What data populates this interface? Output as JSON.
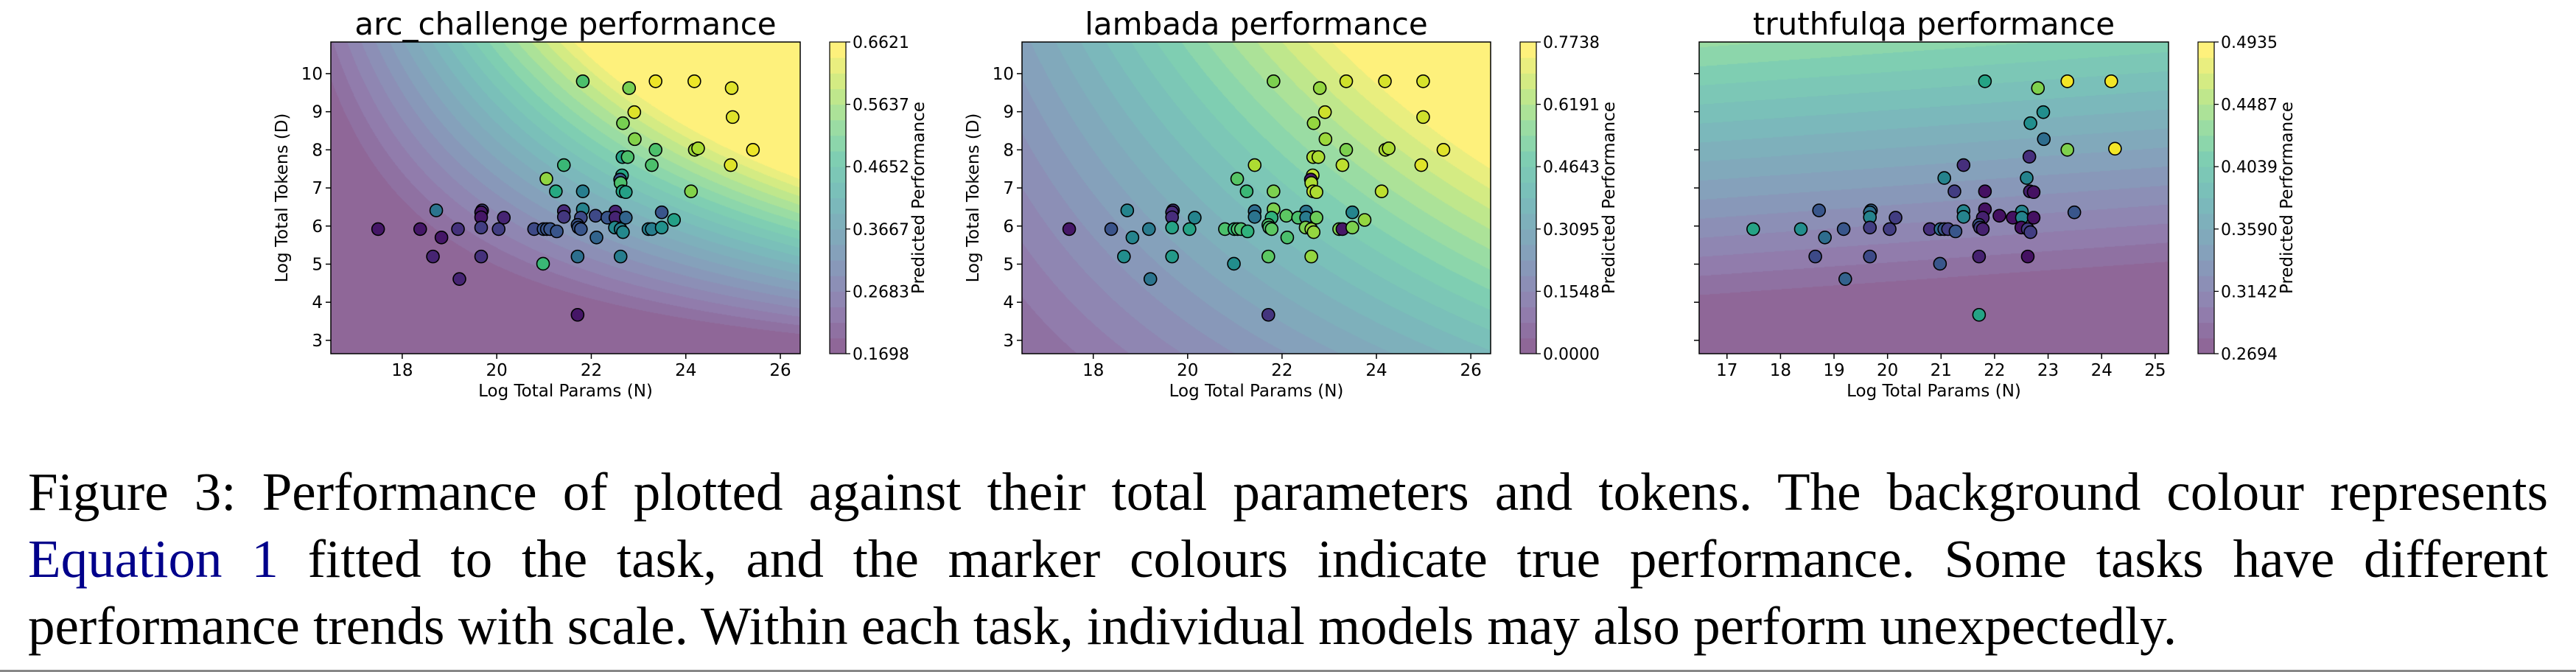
{
  "caption": {
    "line1": "Figure 3: Performance of plotted against their total parameters and tokens. The background colour represents",
    "line2_link": "Equation 1",
    "line2_rest": " fitted to the task, and the marker colours indicate true performance. Some tasks have different",
    "line3": "performance trends with scale. Within each task, individual models may also perform unexpectedly."
  },
  "chart_data": [
    {
      "type": "scatter",
      "title": "arc_challenge performance",
      "xlabel": "Log Total Params (N)",
      "ylabel": "Log Total Tokens (D)",
      "colorbar_label": "Predicted Performance",
      "colorbar_range": [
        0.1698,
        0.6621
      ],
      "colorbar_ticks": [
        "0.1698",
        "0.2683",
        "0.3667",
        "0.4652",
        "0.5637",
        "0.6621"
      ],
      "xlim": [
        16.49,
        26.42
      ],
      "ylim": [
        2.65,
        10.83
      ],
      "xticks": [
        18,
        20,
        22,
        24,
        26
      ],
      "yticks": [
        3,
        4,
        5,
        6,
        7,
        8,
        9,
        10
      ],
      "colormap": "viridis",
      "grid": false,
      "points": [
        [
          21.82,
          9.8,
          0.52
        ],
        [
          23.36,
          9.8,
          0.65
        ],
        [
          24.18,
          9.8,
          0.65
        ],
        [
          24.97,
          9.62,
          0.64
        ],
        [
          22.8,
          9.62,
          0.56
        ],
        [
          22.91,
          8.99,
          0.64
        ],
        [
          24.99,
          8.86,
          0.64
        ],
        [
          22.67,
          8.7,
          0.56
        ],
        [
          22.92,
          8.28,
          0.57
        ],
        [
          23.36,
          8.0,
          0.52
        ],
        [
          24.19,
          8.0,
          0.59
        ],
        [
          24.26,
          8.04,
          0.6
        ],
        [
          25.42,
          8.0,
          0.65
        ],
        [
          22.66,
          7.81,
          0.45
        ],
        [
          22.77,
          7.81,
          0.52
        ],
        [
          21.42,
          7.6,
          0.5
        ],
        [
          23.28,
          7.6,
          0.52
        ],
        [
          24.95,
          7.6,
          0.64
        ],
        [
          21.05,
          7.24,
          0.58
        ],
        [
          22.65,
          7.33,
          0.46
        ],
        [
          22.61,
          7.22,
          0.3
        ],
        [
          22.62,
          7.13,
          0.52
        ],
        [
          21.25,
          6.91,
          0.47
        ],
        [
          21.82,
          6.91,
          0.38
        ],
        [
          22.66,
          6.91,
          0.46
        ],
        [
          22.73,
          6.89,
          0.45
        ],
        [
          24.11,
          6.91,
          0.57
        ],
        [
          18.72,
          6.41,
          0.36
        ],
        [
          19.69,
          6.41,
          0.26
        ],
        [
          19.67,
          6.36,
          0.2
        ],
        [
          21.42,
          6.39,
          0.23
        ],
        [
          21.42,
          6.24,
          0.25
        ],
        [
          21.82,
          6.44,
          0.39
        ],
        [
          22.51,
          6.38,
          0.22
        ],
        [
          23.49,
          6.36,
          0.3
        ],
        [
          19.67,
          6.23,
          0.2
        ],
        [
          20.15,
          6.22,
          0.22
        ],
        [
          22.09,
          6.27,
          0.28
        ],
        [
          21.78,
          6.22,
          0.28
        ],
        [
          22.34,
          6.22,
          0.3
        ],
        [
          22.51,
          6.22,
          0.22
        ],
        [
          22.73,
          6.22,
          0.33
        ],
        [
          23.75,
          6.16,
          0.45
        ],
        [
          17.49,
          5.92,
          0.2
        ],
        [
          18.38,
          5.92,
          0.2
        ],
        [
          19.18,
          5.92,
          0.24
        ],
        [
          19.67,
          5.96,
          0.26
        ],
        [
          20.04,
          5.92,
          0.26
        ],
        [
          20.79,
          5.92,
          0.28
        ],
        [
          20.99,
          5.92,
          0.3
        ],
        [
          21.06,
          5.92,
          0.3
        ],
        [
          21.13,
          5.92,
          0.3
        ],
        [
          21.27,
          5.86,
          0.3
        ],
        [
          21.71,
          6.03,
          0.3
        ],
        [
          21.73,
          5.96,
          0.3
        ],
        [
          21.78,
          5.92,
          0.3
        ],
        [
          22.5,
          5.96,
          0.4
        ],
        [
          22.62,
          5.92,
          0.38
        ],
        [
          22.67,
          5.84,
          0.4
        ],
        [
          23.21,
          5.92,
          0.38
        ],
        [
          23.28,
          5.92,
          0.38
        ],
        [
          23.49,
          5.96,
          0.42
        ],
        [
          18.83,
          5.7,
          0.2
        ],
        [
          22.11,
          5.7,
          0.33
        ],
        [
          18.65,
          5.2,
          0.22
        ],
        [
          19.67,
          5.2,
          0.24
        ],
        [
          21.71,
          5.2,
          0.35
        ],
        [
          22.62,
          5.2,
          0.38
        ],
        [
          20.98,
          5.01,
          0.5
        ],
        [
          19.21,
          4.61,
          0.22
        ],
        [
          21.71,
          3.67,
          0.2
        ]
      ]
    },
    {
      "type": "scatter",
      "title": "lambada performance",
      "xlabel": "Log Total Params (N)",
      "ylabel": "Log Total Tokens (D)",
      "colorbar_label": "Predicted Performance",
      "colorbar_range": [
        0.0,
        0.7738
      ],
      "colorbar_ticks": [
        "0.0000",
        "0.1548",
        "0.3095",
        "0.4643",
        "0.6191",
        "0.7738"
      ],
      "xlim": [
        16.49,
        26.42
      ],
      "ylim": [
        2.65,
        10.83
      ],
      "xticks": [
        18,
        20,
        22,
        24,
        26
      ],
      "yticks": [
        3,
        4,
        5,
        6,
        7,
        8,
        9,
        10
      ],
      "colormap": "viridis",
      "grid": false,
      "points": [
        [
          21.82,
          9.8,
          0.62
        ],
        [
          23.36,
          9.8,
          0.72
        ],
        [
          24.18,
          9.8,
          0.73
        ],
        [
          24.99,
          9.8,
          0.73
        ],
        [
          22.8,
          9.62,
          0.65
        ],
        [
          22.91,
          8.99,
          0.72
        ],
        [
          24.99,
          8.86,
          0.72
        ],
        [
          22.67,
          8.7,
          0.65
        ],
        [
          22.92,
          8.28,
          0.66
        ],
        [
          23.36,
          8.0,
          0.62
        ],
        [
          24.19,
          8.0,
          0.68
        ],
        [
          24.26,
          8.04,
          0.68
        ],
        [
          25.42,
          8.0,
          0.74
        ],
        [
          22.66,
          7.81,
          0.68
        ],
        [
          22.77,
          7.81,
          0.68
        ],
        [
          21.42,
          7.6,
          0.68
        ],
        [
          23.28,
          7.6,
          0.7
        ],
        [
          24.95,
          7.6,
          0.74
        ],
        [
          21.05,
          7.24,
          0.57
        ],
        [
          22.65,
          7.33,
          0.7
        ],
        [
          22.61,
          7.22,
          0.05
        ],
        [
          22.62,
          7.13,
          0.68
        ],
        [
          21.25,
          6.91,
          0.52
        ],
        [
          21.82,
          6.91,
          0.62
        ],
        [
          22.66,
          6.91,
          0.7
        ],
        [
          22.73,
          6.89,
          0.68
        ],
        [
          24.11,
          6.91,
          0.7
        ],
        [
          18.72,
          6.41,
          0.35
        ],
        [
          19.69,
          6.41,
          0.12
        ],
        [
          19.67,
          6.36,
          0.1
        ],
        [
          21.42,
          6.39,
          0.28
        ],
        [
          21.42,
          6.24,
          0.3
        ],
        [
          21.82,
          6.44,
          0.62
        ],
        [
          22.51,
          6.38,
          0.3
        ],
        [
          23.49,
          6.36,
          0.35
        ],
        [
          19.67,
          6.23,
          0.1
        ],
        [
          20.15,
          6.22,
          0.35
        ],
        [
          22.09,
          6.27,
          0.58
        ],
        [
          21.78,
          6.22,
          0.5
        ],
        [
          22.34,
          6.22,
          0.55
        ],
        [
          22.51,
          6.22,
          0.32
        ],
        [
          22.73,
          6.22,
          0.6
        ],
        [
          23.75,
          6.16,
          0.65
        ],
        [
          17.49,
          5.92,
          0.05
        ],
        [
          18.38,
          5.92,
          0.2
        ],
        [
          19.18,
          5.92,
          0.32
        ],
        [
          19.67,
          5.96,
          0.45
        ],
        [
          20.04,
          5.92,
          0.45
        ],
        [
          20.79,
          5.92,
          0.55
        ],
        [
          20.99,
          5.92,
          0.5
        ],
        [
          21.06,
          5.92,
          0.55
        ],
        [
          21.13,
          5.92,
          0.55
        ],
        [
          21.27,
          5.86,
          0.5
        ],
        [
          21.71,
          6.03,
          0.55
        ],
        [
          21.73,
          5.96,
          0.55
        ],
        [
          21.78,
          5.92,
          0.58
        ],
        [
          22.5,
          5.96,
          0.62
        ],
        [
          22.62,
          5.92,
          0.65
        ],
        [
          22.67,
          5.84,
          0.65
        ],
        [
          23.21,
          5.92,
          0.62
        ],
        [
          23.28,
          5.92,
          0.05
        ],
        [
          23.49,
          5.96,
          0.62
        ],
        [
          18.83,
          5.7,
          0.35
        ],
        [
          22.11,
          5.7,
          0.55
        ],
        [
          18.65,
          5.2,
          0.38
        ],
        [
          19.67,
          5.2,
          0.42
        ],
        [
          21.71,
          5.2,
          0.58
        ],
        [
          22.62,
          5.2,
          0.65
        ],
        [
          20.98,
          5.01,
          0.38
        ],
        [
          19.21,
          4.61,
          0.3
        ],
        [
          21.71,
          3.67,
          0.12
        ]
      ]
    },
    {
      "type": "scatter",
      "title": "truthfulqa performance",
      "xlabel": "Log Total Params (N)",
      "ylabel": "Log Total Tokens (D)",
      "colorbar_label": "Predicted Performance",
      "colorbar_range": [
        0.2694,
        0.4935
      ],
      "colorbar_ticks": [
        "0.2694",
        "0.3142",
        "0.3590",
        "0.4039",
        "0.4487",
        "0.4935"
      ],
      "xlim": [
        16.48,
        25.25
      ],
      "ylim": [
        2.65,
        10.83
      ],
      "xticks": [
        17,
        18,
        19,
        20,
        21,
        22,
        23,
        24,
        25
      ],
      "yticks": [
        3,
        4,
        5,
        6,
        7,
        8,
        9,
        10
      ],
      "colormap": "viridis",
      "grid": false,
      "points": [
        [
          21.82,
          9.8,
          0.4
        ],
        [
          23.36,
          9.8,
          0.49
        ],
        [
          24.18,
          9.8,
          0.49
        ],
        [
          22.81,
          9.62,
          0.45
        ],
        [
          22.91,
          8.99,
          0.38
        ],
        [
          22.67,
          8.7,
          0.38
        ],
        [
          22.92,
          8.28,
          0.35
        ],
        [
          23.36,
          8.0,
          0.45
        ],
        [
          24.25,
          8.03,
          0.49
        ],
        [
          22.65,
          7.82,
          0.3
        ],
        [
          21.42,
          7.6,
          0.3
        ],
        [
          21.06,
          7.26,
          0.37
        ],
        [
          22.6,
          7.26,
          0.37
        ],
        [
          21.25,
          6.91,
          0.31
        ],
        [
          21.82,
          6.91,
          0.28
        ],
        [
          22.66,
          6.91,
          0.29
        ],
        [
          22.73,
          6.89,
          0.28
        ],
        [
          18.72,
          6.41,
          0.33
        ],
        [
          19.69,
          6.41,
          0.34
        ],
        [
          19.67,
          6.36,
          0.35
        ],
        [
          21.42,
          6.39,
          0.37
        ],
        [
          21.42,
          6.24,
          0.37
        ],
        [
          21.82,
          6.44,
          0.28
        ],
        [
          22.51,
          6.38,
          0.37
        ],
        [
          23.49,
          6.36,
          0.33
        ],
        [
          19.67,
          6.23,
          0.37
        ],
        [
          20.15,
          6.22,
          0.31
        ],
        [
          22.09,
          6.27,
          0.28
        ],
        [
          21.78,
          6.22,
          0.29
        ],
        [
          22.34,
          6.22,
          0.28
        ],
        [
          22.51,
          6.22,
          0.37
        ],
        [
          22.73,
          6.22,
          0.28
        ],
        [
          17.49,
          5.92,
          0.4
        ],
        [
          18.38,
          5.92,
          0.38
        ],
        [
          19.18,
          5.92,
          0.33
        ],
        [
          19.67,
          5.96,
          0.31
        ],
        [
          20.04,
          5.92,
          0.31
        ],
        [
          20.79,
          5.92,
          0.3
        ],
        [
          20.99,
          5.92,
          0.35
        ],
        [
          21.06,
          5.92,
          0.33
        ],
        [
          21.13,
          5.92,
          0.31
        ],
        [
          21.27,
          5.86,
          0.33
        ],
        [
          21.71,
          6.03,
          0.33
        ],
        [
          21.73,
          5.96,
          0.31
        ],
        [
          21.78,
          5.92,
          0.29
        ],
        [
          22.5,
          5.96,
          0.28
        ],
        [
          22.62,
          5.92,
          0.31
        ],
        [
          22.67,
          5.84,
          0.31
        ],
        [
          18.83,
          5.7,
          0.35
        ],
        [
          18.65,
          5.2,
          0.32
        ],
        [
          19.67,
          5.2,
          0.32
        ],
        [
          21.71,
          5.2,
          0.29
        ],
        [
          22.62,
          5.2,
          0.28
        ],
        [
          20.98,
          5.01,
          0.33
        ],
        [
          19.21,
          4.61,
          0.34
        ],
        [
          21.71,
          3.67,
          0.4
        ]
      ]
    }
  ]
}
